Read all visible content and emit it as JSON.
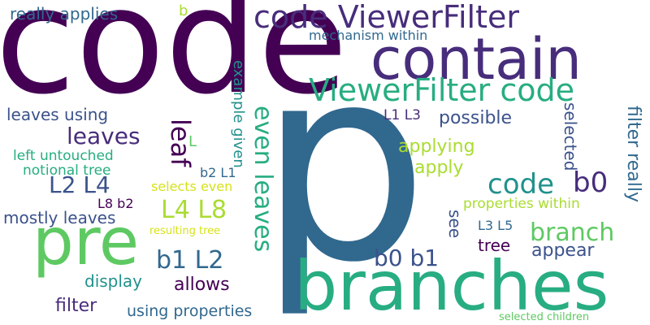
{
  "colors": {
    "dark_purple": "#440154",
    "indigo": "#3b528b",
    "purple": "#472d7b",
    "blue": "#31688e",
    "teal": "#21918c",
    "green": "#27ad81",
    "light_green": "#5ec962",
    "lime": "#aadc32",
    "yellow": "#d7e219",
    "background": "#ffffff"
  },
  "words": [
    {
      "id": "p",
      "text": "p"
    },
    {
      "id": "code_big",
      "text": "code"
    },
    {
      "id": "contain",
      "text": "contain"
    },
    {
      "id": "code_viewerfilter",
      "text": "code ViewerFilter"
    },
    {
      "id": "viewerfilter_code",
      "text": "ViewerFilter code"
    },
    {
      "id": "branches",
      "text": "branches"
    },
    {
      "id": "pre",
      "text": "pre"
    },
    {
      "id": "really_applies",
      "text": "really applies"
    },
    {
      "id": "b_top",
      "text": "b"
    },
    {
      "id": "mechanism_within",
      "text": "mechanism within"
    },
    {
      "id": "leaves_using",
      "text": "leaves using"
    },
    {
      "id": "leaves",
      "text": "leaves"
    },
    {
      "id": "leaf",
      "text": "leaf"
    },
    {
      "id": "even_leaves",
      "text": "even leaves"
    },
    {
      "id": "example_given",
      "text": "example given"
    },
    {
      "id": "l_single",
      "text": "L"
    },
    {
      "id": "left_untouched",
      "text": "left untouched"
    },
    {
      "id": "notional_tree",
      "text": "notional tree"
    },
    {
      "id": "l2_l4",
      "text": "L2 L4"
    },
    {
      "id": "selects_even",
      "text": "selects even"
    },
    {
      "id": "b2_l1",
      "text": "b2 L1"
    },
    {
      "id": "l8_b2",
      "text": "L8 b2"
    },
    {
      "id": "mostly_leaves",
      "text": "mostly leaves"
    },
    {
      "id": "l4_l8",
      "text": "L4 L8"
    },
    {
      "id": "resulting_tree",
      "text": "resulting tree"
    },
    {
      "id": "b1_l2",
      "text": "b1 L2"
    },
    {
      "id": "display",
      "text": "display"
    },
    {
      "id": "allows",
      "text": "allows"
    },
    {
      "id": "filter",
      "text": "filter"
    },
    {
      "id": "using_properties",
      "text": "using properties"
    },
    {
      "id": "l1_l3",
      "text": "L1 L3"
    },
    {
      "id": "possible",
      "text": "possible"
    },
    {
      "id": "selected_v",
      "text": "selected"
    },
    {
      "id": "filter_really",
      "text": "filter really"
    },
    {
      "id": "applying",
      "text": "applying"
    },
    {
      "id": "apply",
      "text": "apply"
    },
    {
      "id": "code_small",
      "text": "code"
    },
    {
      "id": "b0",
      "text": "b0"
    },
    {
      "id": "properties_within",
      "text": "properties within"
    },
    {
      "id": "branch",
      "text": "branch"
    },
    {
      "id": "see",
      "text": "see"
    },
    {
      "id": "l3_l5",
      "text": "L3 L5"
    },
    {
      "id": "tree",
      "text": "tree"
    },
    {
      "id": "appear",
      "text": "appear"
    },
    {
      "id": "b0_b1",
      "text": "b0 b1"
    },
    {
      "id": "selected_children",
      "text": "selected children"
    }
  ]
}
